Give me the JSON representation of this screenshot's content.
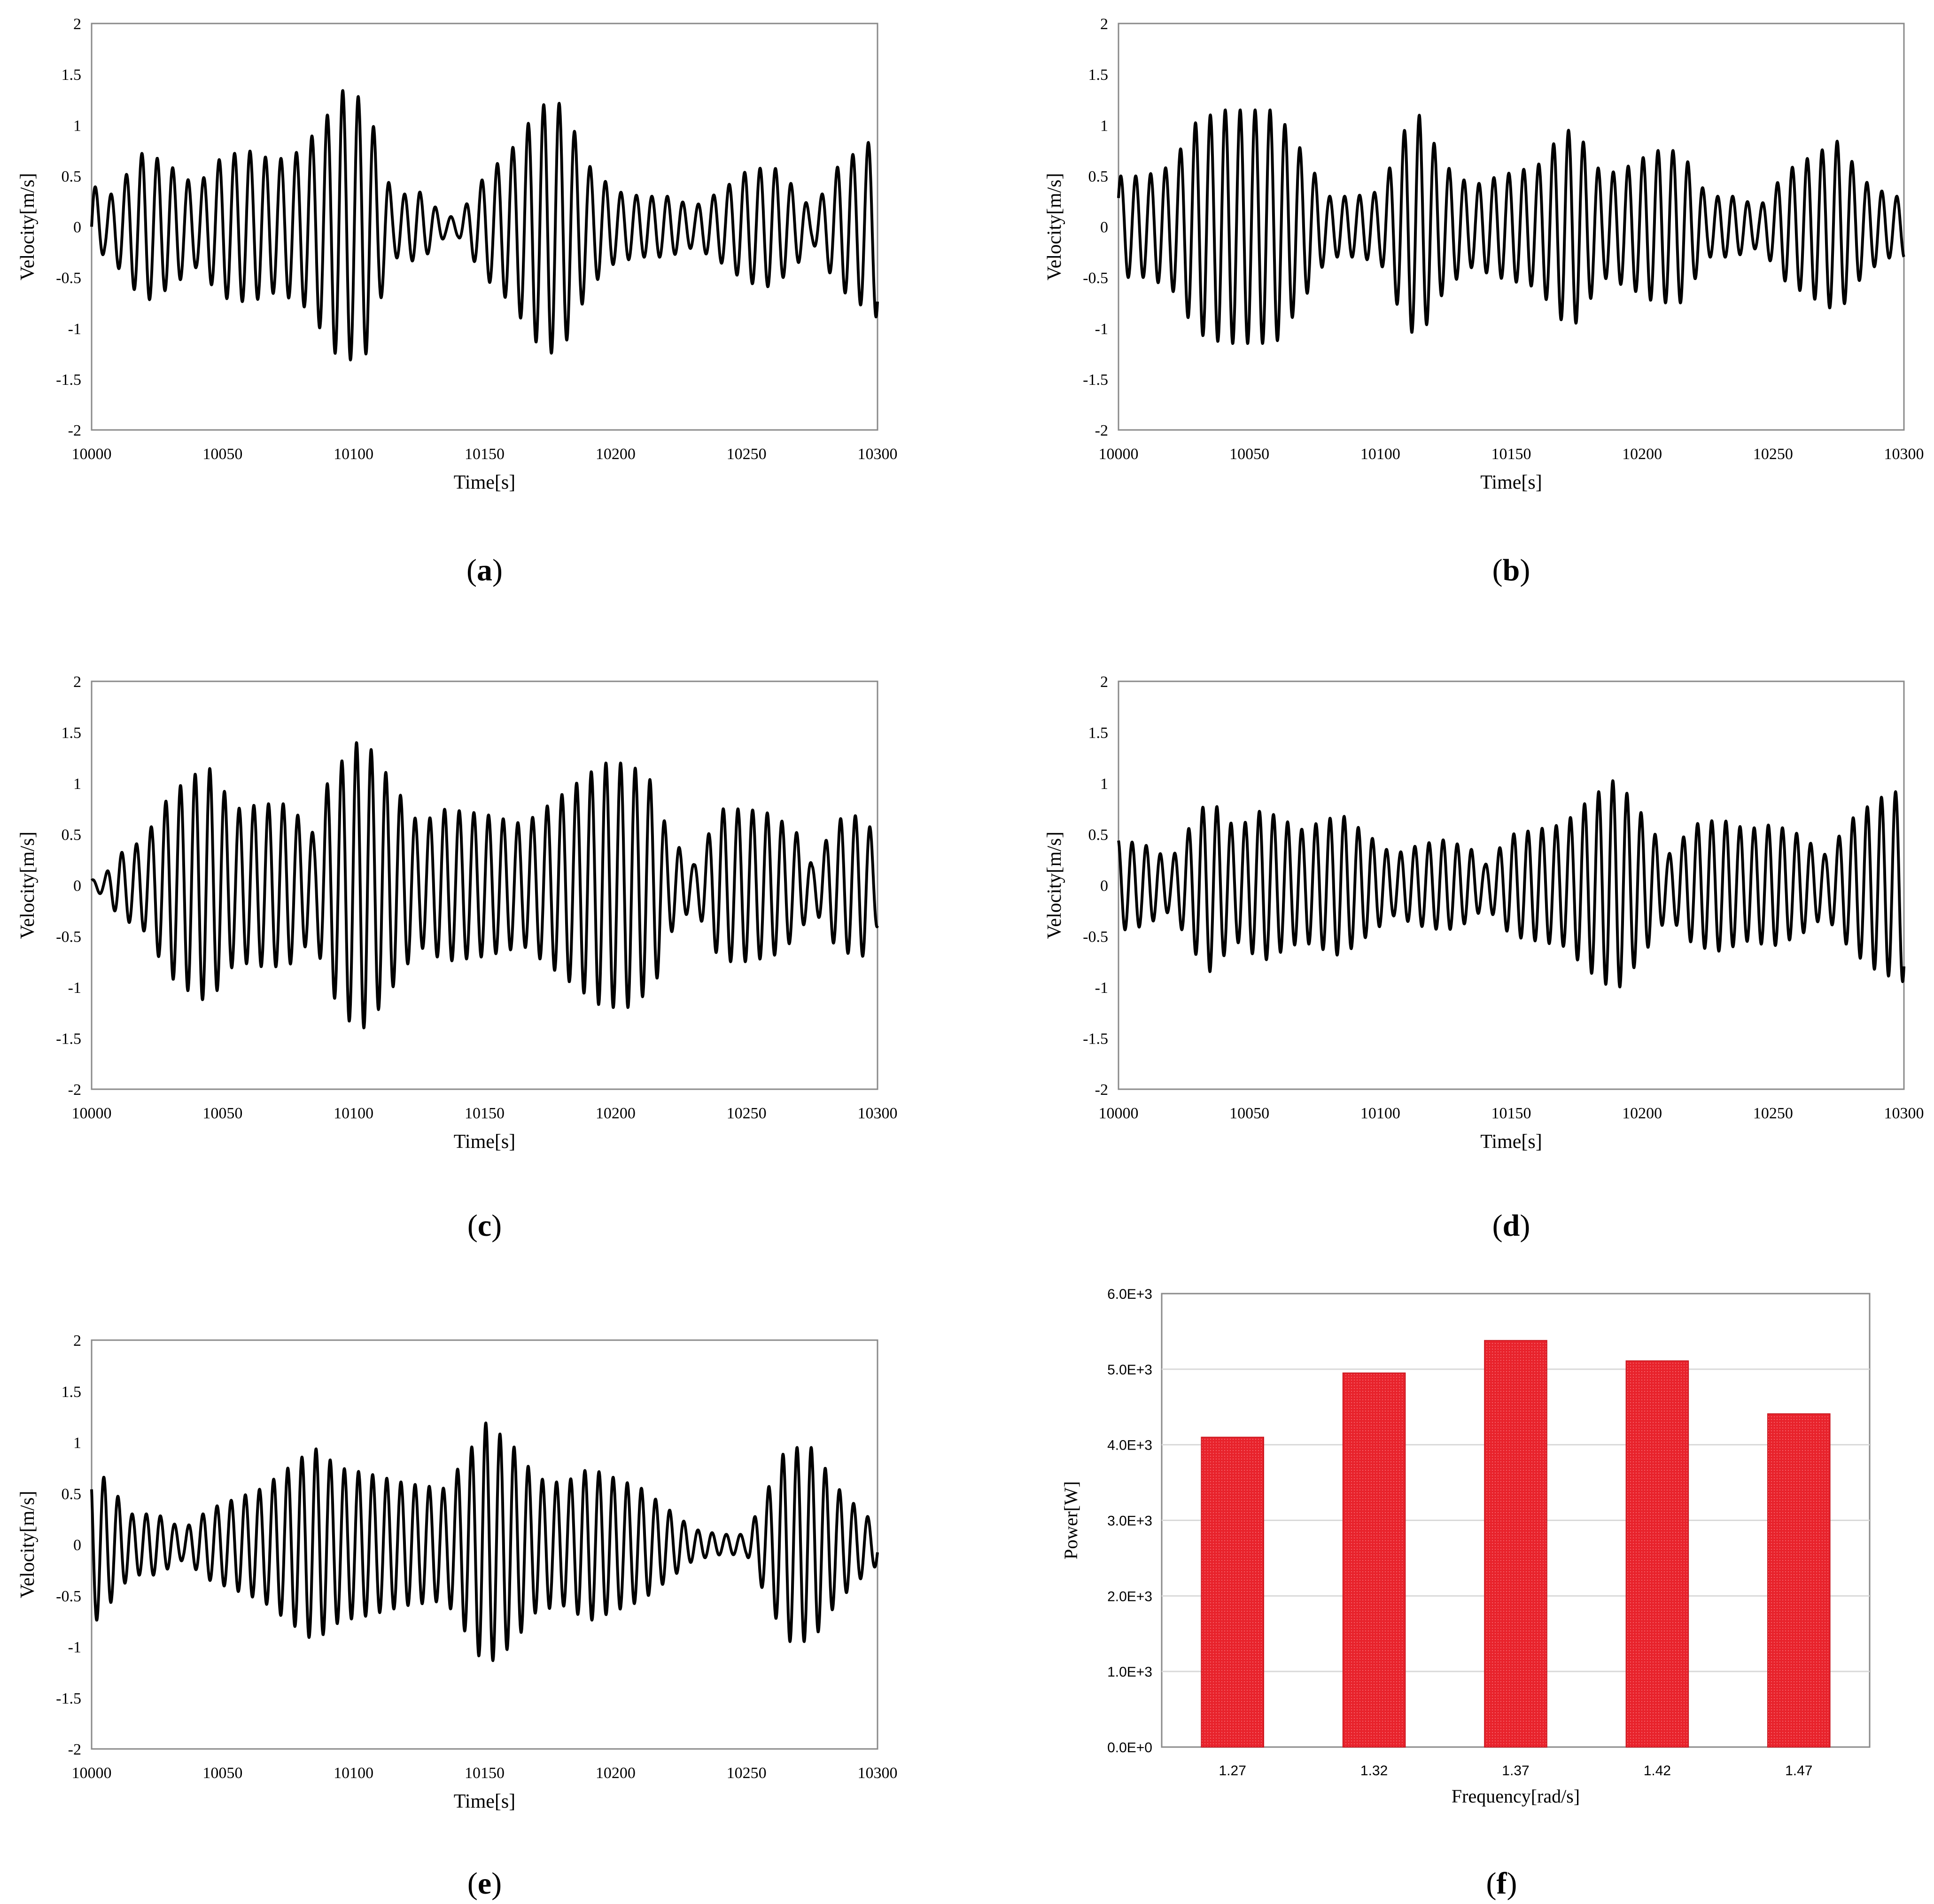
{
  "chart_data": [
    {
      "id": "a",
      "type": "line",
      "caption": "a",
      "xlabel": "Time[s]",
      "ylabel": "Velocity[m/s]",
      "xlim": [
        10000,
        10300
      ],
      "ylim": [
        -2,
        2
      ],
      "xticks": [
        "10000",
        "10050",
        "10100",
        "10150",
        "10200",
        "10250",
        "10300"
      ],
      "yticks": [
        "2",
        "1.5",
        "1",
        "0.5",
        "0",
        "-0.5",
        "-1",
        "-1.5",
        "-2"
      ],
      "series": [
        {
          "color": "#000000",
          "period_s": 5.9,
          "envelope": {
            "t": [
              10000,
              10005,
              10010,
              10020,
              10030,
              10040,
              10050,
              10060,
              10070,
              10080,
              10090,
              10095,
              10100,
              10105,
              10110,
              10115,
              10125,
              10135,
              10140,
              10150,
              10160,
              10170,
              10175,
              10180,
              10190,
              10200,
              10210,
              10220,
              10230,
              10240,
              10250,
              10260,
              10270,
              10275,
              10285,
              10295,
              10300
            ],
            "amp": [
              0.45,
              0.25,
              0.4,
              0.75,
              0.6,
              0.4,
              0.7,
              0.75,
              0.65,
              0.75,
              1.1,
              1.35,
              1.3,
              1.25,
              0.75,
              0.3,
              0.35,
              0.1,
              0.1,
              0.5,
              0.75,
              1.15,
              1.25,
              1.2,
              0.6,
              0.35,
              0.3,
              0.3,
              0.2,
              0.35,
              0.55,
              0.6,
              0.35,
              0.15,
              0.6,
              0.8,
              0.9
            ]
          }
        }
      ]
    },
    {
      "id": "b",
      "type": "line",
      "caption": "b",
      "xlabel": "Time[s]",
      "ylabel": "Velocity[m/s]",
      "xlim": [
        10000,
        10300
      ],
      "ylim": [
        -2,
        2
      ],
      "xticks": [
        "10000",
        "10050",
        "10100",
        "10150",
        "10200",
        "10250",
        "10300"
      ],
      "yticks": [
        "2",
        "1.5",
        "1",
        "0.5",
        "0",
        "-0.5",
        "-1",
        "-1.5",
        "-2"
      ],
      "series": [
        {
          "color": "#000000",
          "period_s": 5.7,
          "envelope": {
            "t": [
              10000,
              10010,
              10020,
              10030,
              10040,
              10050,
              10060,
              10070,
              10080,
              10090,
              10100,
              10110,
              10115,
              10125,
              10135,
              10145,
              10160,
              10170,
              10175,
              10185,
              10195,
              10205,
              10215,
              10225,
              10235,
              10245,
              10255,
              10265,
              10275,
              10285,
              10295,
              10300
            ],
            "amp": [
              0.5,
              0.5,
              0.6,
              1.05,
              1.15,
              1.15,
              1.15,
              0.75,
              0.3,
              0.3,
              0.35,
              1.0,
              1.1,
              0.6,
              0.4,
              0.5,
              0.6,
              0.95,
              0.95,
              0.5,
              0.6,
              0.75,
              0.75,
              0.3,
              0.3,
              0.2,
              0.55,
              0.7,
              0.85,
              0.45,
              0.3,
              0.3
            ]
          }
        }
      ]
    },
    {
      "id": "c",
      "type": "line",
      "caption": "c",
      "xlabel": "Time[s]",
      "ylabel": "Velocity[m/s]",
      "xlim": [
        10000,
        10300
      ],
      "ylim": [
        -2,
        2
      ],
      "xticks": [
        "10000",
        "10050",
        "10100",
        "10150",
        "10200",
        "10250",
        "10300"
      ],
      "yticks": [
        "2",
        "1.5",
        "1",
        "0.5",
        "0",
        "-0.5",
        "-1",
        "-1.5",
        "-2"
      ],
      "series": [
        {
          "color": "#000000",
          "period_s": 5.6,
          "envelope": {
            "t": [
              10000,
              10005,
              10010,
              10020,
              10030,
              10040,
              10045,
              10055,
              10065,
              10075,
              10085,
              10090,
              10100,
              10105,
              10115,
              10125,
              10135,
              10150,
              10165,
              10180,
              10195,
              10205,
              10215,
              10220,
              10230,
              10240,
              10250,
              10260,
              10270,
              10275,
              10285,
              10295,
              10300
            ],
            "amp": [
              0.05,
              0.1,
              0.3,
              0.45,
              0.9,
              1.1,
              1.15,
              0.75,
              0.8,
              0.8,
              0.5,
              1.0,
              1.4,
              1.4,
              1.0,
              0.6,
              0.75,
              0.7,
              0.6,
              0.9,
              1.2,
              1.2,
              1.0,
              0.5,
              0.2,
              0.75,
              0.75,
              0.7,
              0.5,
              0.2,
              0.65,
              0.7,
              0.4
            ]
          }
        }
      ]
    },
    {
      "id": "d",
      "type": "line",
      "caption": "d",
      "xlabel": "Time[s]",
      "ylabel": "Velocity[m/s]",
      "xlim": [
        10000,
        10300
      ],
      "ylim": [
        -2,
        2
      ],
      "xticks": [
        "10000",
        "10050",
        "10100",
        "10150",
        "10200",
        "10250",
        "10300"
      ],
      "yticks": [
        "2",
        "1.5",
        "1",
        "0.5",
        "0",
        "-0.5",
        "-1",
        "-1.5",
        "-2"
      ],
      "series": [
        {
          "color": "#000000",
          "period_s": 5.4,
          "envelope": {
            "t": [
              10000,
              10010,
              10020,
              10030,
              10035,
              10045,
              10055,
              10070,
              10085,
              10095,
              10105,
              10115,
              10125,
              10135,
              10140,
              10150,
              10160,
              10170,
              10180,
              10190,
              10200,
              10210,
              10220,
              10230,
              10240,
              10250,
              10260,
              10270,
              10280,
              10290,
              10300
            ],
            "amp": [
              0.45,
              0.4,
              0.25,
              0.7,
              0.85,
              0.55,
              0.75,
              0.55,
              0.7,
              0.5,
              0.3,
              0.4,
              0.45,
              0.35,
              0.2,
              0.5,
              0.55,
              0.6,
              0.85,
              1.05,
              0.7,
              0.3,
              0.6,
              0.65,
              0.55,
              0.6,
              0.5,
              0.3,
              0.65,
              0.85,
              0.95
            ]
          }
        }
      ]
    },
    {
      "id": "e",
      "type": "line",
      "caption": "e",
      "xlabel": "Time[s]",
      "ylabel": "Velocity[m/s]",
      "xlim": [
        10000,
        10300
      ],
      "ylim": [
        -2,
        2
      ],
      "xticks": [
        "10000",
        "10050",
        "10100",
        "10150",
        "10200",
        "10250",
        "10300"
      ],
      "yticks": [
        "2",
        "1.5",
        "1",
        "0.5",
        "0",
        "-0.5",
        "-1",
        "-1.5",
        "-2"
      ],
      "series": [
        {
          "color": "#000000",
          "period_s": 5.4,
          "envelope": {
            "t": [
              10000,
              10005,
              10015,
              10025,
              10035,
              10045,
              10055,
              10065,
              10075,
              10085,
              10095,
              10105,
              10120,
              10135,
              10145,
              10150,
              10160,
              10170,
              10180,
              10190,
              10200,
              10210,
              10220,
              10230,
              10240,
              10250,
              10260,
              10265,
              10275,
              10285,
              10295,
              10300
            ],
            "amp": [
              0.8,
              0.65,
              0.3,
              0.3,
              0.15,
              0.35,
              0.45,
              0.55,
              0.75,
              0.95,
              0.75,
              0.7,
              0.6,
              0.55,
              0.95,
              1.2,
              1.0,
              0.65,
              0.6,
              0.75,
              0.65,
              0.55,
              0.35,
              0.15,
              0.1,
              0.1,
              0.65,
              0.95,
              0.95,
              0.55,
              0.3,
              0.2
            ]
          }
        }
      ]
    },
    {
      "id": "f",
      "type": "bar",
      "caption": "f",
      "xlabel": "Frequency[rad/s]",
      "ylabel": "Power[W]",
      "categories": [
        "1.27",
        "1.32",
        "1.37",
        "1.42",
        "1.47"
      ],
      "values": [
        4100,
        4950,
        5380,
        5110,
        4410
      ],
      "ylim": [
        0,
        6000
      ],
      "yticks": [
        "0.0E+0",
        "1.0E+3",
        "2.0E+3",
        "3.0E+3",
        "4.0E+3",
        "5.0E+3",
        "6.0E+3"
      ],
      "grid": true,
      "bar_color": "#e0202a"
    }
  ]
}
